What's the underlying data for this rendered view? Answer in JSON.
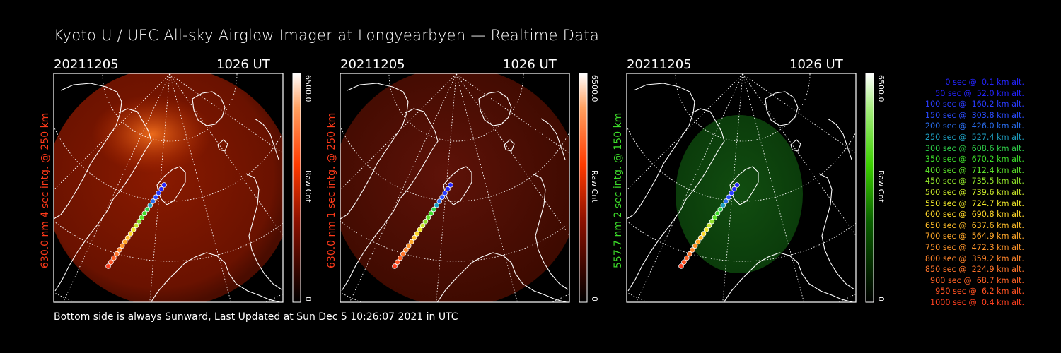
{
  "title": "Kyoto U / UEC All-sky Airglow Imager at Longyearbyen — Realtime Data",
  "footer": "Bottom side is always Sunward, Last Updated at Sun Dec  5 10:26:07 2021 in UTC",
  "panels": [
    {
      "date": "20211205",
      "time": "1026 UT",
      "label": "630.0 nm 4 sec intg. @ 250 km",
      "label_color": "#ff3a1a",
      "cbar_max": "6500.0",
      "cbar_min": "0",
      "cbar_label": "Raw Cnt",
      "cbar_end_color": "#ff3a00",
      "glow_color": "#7a1300"
    },
    {
      "date": "20211205",
      "time": "1026 UT",
      "label": "630.0 nm 1 sec intg. @ 250 km",
      "label_color": "#ff3a1a",
      "cbar_max": "6500.0",
      "cbar_min": "0",
      "cbar_label": "Raw Cnt",
      "cbar_end_color": "#ff3a00",
      "glow_color": "#5a0c00"
    },
    {
      "date": "20211205",
      "time": "1026 UT",
      "label": "557.7 nm 2 sec intg. @ 150 km",
      "label_color": "#3ddb2a",
      "cbar_max": "6500.0",
      "cbar_min": "0",
      "cbar_label": "Raw Cnt",
      "cbar_end_color": "#3cd000",
      "glow_color": "#0c4a0c"
    }
  ],
  "trajectory_legend": [
    {
      "time": "0 sec @",
      "alt": "0.1 km alt.",
      "color": "#2424ff"
    },
    {
      "time": "50 sec @",
      "alt": "52.0 km alt.",
      "color": "#2424ff"
    },
    {
      "time": "100 sec @",
      "alt": "160.2 km alt.",
      "color": "#2a3cff"
    },
    {
      "time": "150 sec @",
      "alt": "303.8 km alt.",
      "color": "#2a4cff"
    },
    {
      "time": "200 sec @",
      "alt": "426.0 km alt.",
      "color": "#2a6ef0"
    },
    {
      "time": "250 sec @",
      "alt": "527.4 km alt.",
      "color": "#1e9fc2"
    },
    {
      "time": "300 sec @",
      "alt": "608.6 km alt.",
      "color": "#2fd04a"
    },
    {
      "time": "350 sec @",
      "alt": "670.2 km alt.",
      "color": "#3ddc2a"
    },
    {
      "time": "400 sec @",
      "alt": "712.4 km alt.",
      "color": "#5ce02a"
    },
    {
      "time": "450 sec @",
      "alt": "735.5 km alt.",
      "color": "#8ee02a"
    },
    {
      "time": "500 sec @",
      "alt": "739.6 km alt.",
      "color": "#c8e62a"
    },
    {
      "time": "550 sec @",
      "alt": "724.7 km alt.",
      "color": "#f0e82a"
    },
    {
      "time": "600 sec @",
      "alt": "690.8 km alt.",
      "color": "#ffd82a"
    },
    {
      "time": "650 sec @",
      "alt": "637.6 km alt.",
      "color": "#ffbe2a"
    },
    {
      "time": "700 sec @",
      "alt": "564.9 km alt.",
      "color": "#ffa82a"
    },
    {
      "time": "750 sec @",
      "alt": "472.3 km alt.",
      "color": "#ff952a"
    },
    {
      "time": "800 sec @",
      "alt": "359.2 km alt.",
      "color": "#ff842a"
    },
    {
      "time": "850 sec @",
      "alt": "224.9 km alt.",
      "color": "#ff742a"
    },
    {
      "time": "900 sec @",
      "alt": "68.7 km alt.",
      "color": "#ff6226"
    },
    {
      "time": "950 sec @",
      "alt": "6.2 km alt.",
      "color": "#ff5222"
    },
    {
      "time": "1000 sec @",
      "alt": "0.4 km alt.",
      "color": "#ff4020"
    }
  ]
}
